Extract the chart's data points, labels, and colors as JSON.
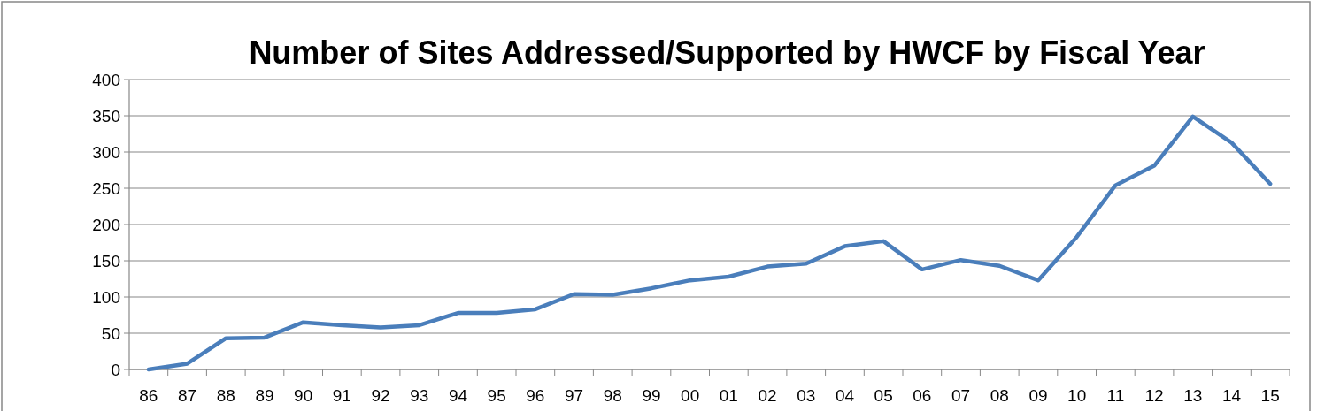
{
  "chart_data": {
    "type": "line",
    "title": "Number of Sites Addressed/Supported by HWCF by Fiscal Year",
    "categories": [
      "86",
      "87",
      "88",
      "89",
      "90",
      "91",
      "92",
      "93",
      "94",
      "95",
      "96",
      "97",
      "98",
      "99",
      "00",
      "01",
      "02",
      "03",
      "04",
      "05",
      "06",
      "07",
      "08",
      "09",
      "10",
      "11",
      "12",
      "13",
      "14",
      "15"
    ],
    "series": [
      {
        "color": "#4a7ebb",
        "values": [
          0,
          8,
          43,
          44,
          65,
          61,
          58,
          61,
          78,
          78,
          83,
          104,
          103,
          112,
          123,
          128,
          142,
          146,
          170,
          177,
          138,
          151,
          143,
          123,
          183,
          254,
          281,
          349,
          313,
          256
        ]
      }
    ],
    "ylim": [
      0,
      400
    ],
    "yticks": [
      0,
      50,
      100,
      150,
      200,
      250,
      300,
      350,
      400
    ],
    "grid": "y",
    "marker": "none",
    "line_style": "solid"
  }
}
